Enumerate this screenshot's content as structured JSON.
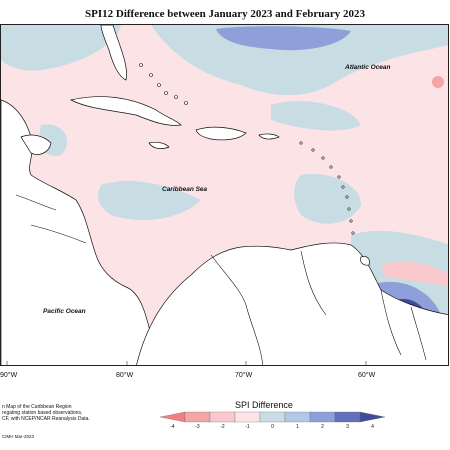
{
  "title": "SPI12 Difference between January 2023 and February 2023",
  "ocean_labels": {
    "atlantic": "Atlantic Ocean",
    "caribbean": "Caribbean Sea",
    "pacific": "Pacific Ocean"
  },
  "longitude_labels": [
    "90°W",
    "80°W",
    "70°W",
    "60°W"
  ],
  "legend": {
    "title": "SPI Difference",
    "ticks": [
      "-4",
      "-3",
      "-2",
      "-1",
      "0",
      "1",
      "2",
      "3",
      "4"
    ],
    "colors": [
      "#f08080",
      "#f4a5a8",
      "#f8c8cc",
      "#fbe3e6",
      "#c7dde3",
      "#b3c8e8",
      "#8e9fd9",
      "#6470bb",
      "#414c96"
    ]
  },
  "footnote_lines": [
    "n Map of the Caribbean Region",
    "regating station based observations,",
    "CF, with NCEP/NCAR Reanalysis Data."
  ],
  "credit": "CIMH Mar-2023"
}
